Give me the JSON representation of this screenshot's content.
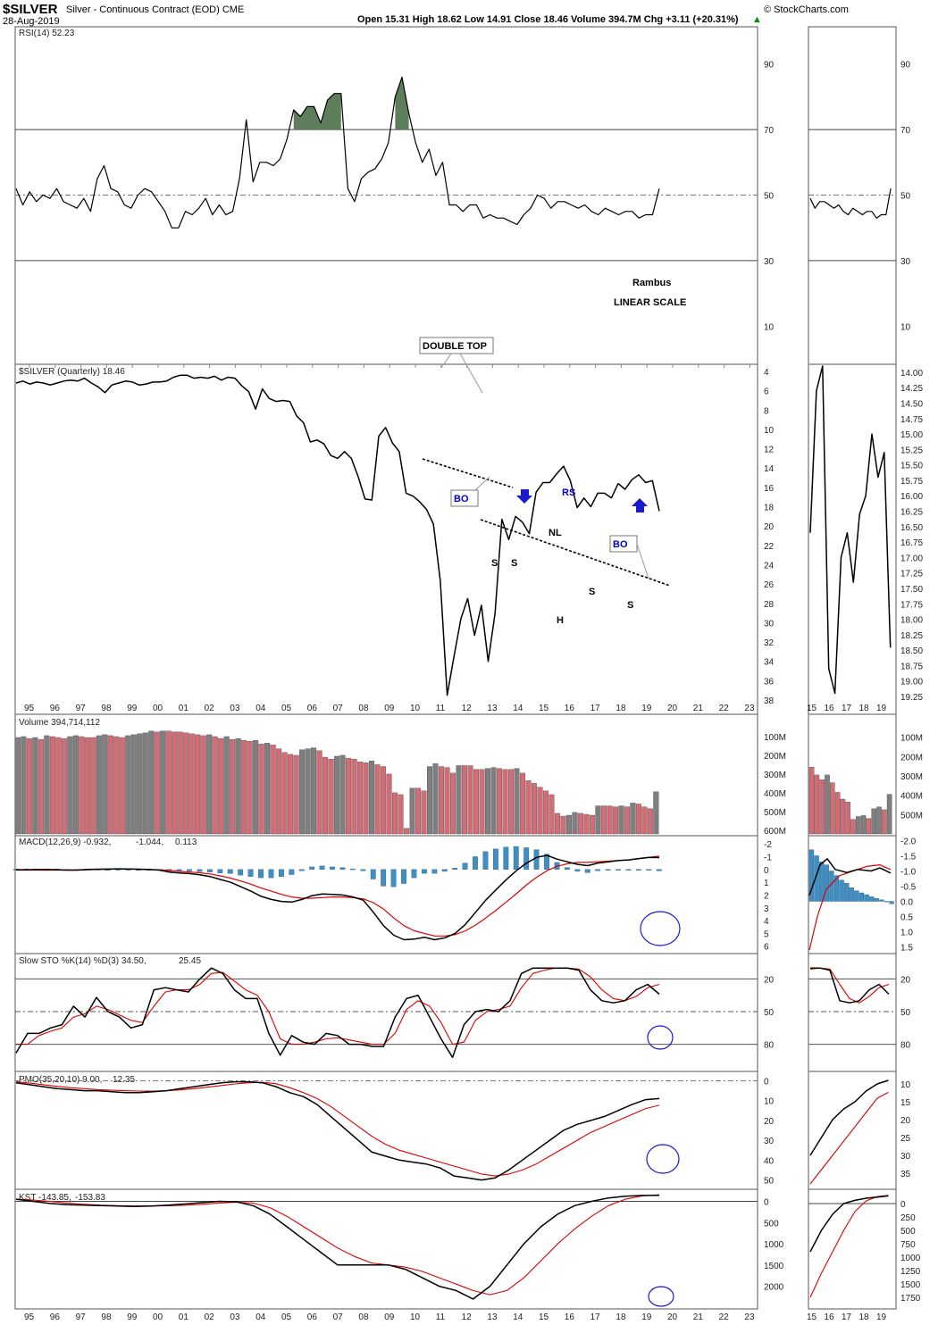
{
  "header": {
    "symbol": "$SILVER",
    "name": "Silver - Continuous Contract (EOD)",
    "exchange": "CME",
    "date": "28-Aug-2019",
    "ohlc": "Open 15.31  High 18.62  Low 14.91  Close 18.46  Volume 394.7M  Chg +3.11 (+20.31%)",
    "ohlc_arrow": "▲",
    "credit": "© StockCharts.com"
  },
  "panels": {
    "rsi": "RSI(14) 52.23",
    "price": "$SILVER (Quarterly) 18.46",
    "volume": "Volume 394,714,112",
    "macd_a": "MACD(12,26,9) -0.932,",
    "macd_b": "-1.044,",
    "macd_c": "0.113",
    "sto_a": "Slow STO %K(14) %D(3) 34.50,",
    "sto_b": "25.45",
    "pmo_a": "PMO(35,20,10) 9.00,",
    "pmo_b": "12.35",
    "kst_a": "KST -143.85,",
    "kst_b": "-153.83"
  },
  "annotations": {
    "rambus": "Rambus",
    "scale": "LINEAR SCALE",
    "double_top": "DOUBLE TOP",
    "bo": "BO",
    "rs": "RS",
    "nl": "NL",
    "s": "S",
    "h": "H"
  },
  "colors": {
    "price": "#000000",
    "signal": "#dd0000",
    "histogram": "#3d8fc4",
    "volume_up": "#d16d77",
    "volume_down": "#7f7f7f",
    "rsi_fill": "#5e7d5a",
    "annotation_blue": "#0000cc"
  },
  "chart_data": {
    "type": "line",
    "x_labels": [
      "95",
      "96",
      "97",
      "98",
      "99",
      "00",
      "01",
      "02",
      "03",
      "04",
      "05",
      "06",
      "07",
      "08",
      "09",
      "10",
      "11",
      "12",
      "13",
      "14",
      "15",
      "16",
      "17",
      "18",
      "19",
      "20",
      "21",
      "22",
      "23"
    ],
    "zoom_x_labels": [
      "15",
      "16",
      "17",
      "18",
      "19"
    ],
    "price": [
      5.2,
      5.0,
      5.3,
      5.1,
      5.2,
      5.4,
      5.2,
      5.0,
      4.9,
      5.0,
      4.7,
      5.2,
      5.6,
      6.2,
      5.4,
      5.2,
      5.0,
      5.1,
      5.4,
      5.3,
      5.1,
      5.1,
      5.0,
      4.6,
      4.4,
      4.4,
      4.7,
      4.6,
      4.7,
      4.5,
      4.9,
      4.6,
      4.7,
      5.5,
      6.1,
      7.9,
      5.8,
      6.8,
      7.1,
      7.0,
      7.1,
      8.6,
      9.3,
      11.3,
      11.1,
      11.5,
      12.7,
      13.0,
      12.3,
      13.0,
      14.9,
      17.2,
      17.3,
      10.7,
      9.8,
      11.4,
      12.3,
      16.6,
      16.9,
      17.5,
      18.3,
      19.8,
      25.7,
      37.5,
      33.5,
      29.6,
      27.5,
      31.3,
      28.2,
      34.0,
      29.0,
      19.3,
      21.4,
      19.0,
      19.6,
      20.8,
      16.5,
      15.5,
      15.5,
      14.6,
      13.8,
      15.3,
      18.1,
      17.1,
      18.0,
      16.6,
      16.6,
      17.1,
      15.6,
      16.2,
      15.2,
      14.7,
      15.5,
      15.3,
      18.46
    ],
    "price_axis": [
      4,
      6,
      8,
      10,
      12,
      14,
      16,
      18,
      20,
      22,
      24,
      26,
      28,
      30,
      32,
      34,
      36,
      38
    ],
    "zoom_price": [
      16.6,
      14.3,
      13.9,
      18.8,
      19.2,
      17.0,
      16.6,
      17.4,
      16.3,
      16.0,
      15.0,
      15.7,
      15.3,
      18.46
    ],
    "zoom_price_axis": [
      14.0,
      14.25,
      14.5,
      14.75,
      15.0,
      15.25,
      15.5,
      15.75,
      16.0,
      16.25,
      16.5,
      16.75,
      17.0,
      17.25,
      17.5,
      17.75,
      18.0,
      18.25,
      18.5,
      18.75,
      19.0,
      19.25
    ],
    "rsi": [
      52,
      47,
      51,
      48,
      50,
      49,
      52,
      48,
      47,
      46,
      49,
      45,
      55,
      59,
      52,
      51,
      47,
      46,
      50,
      52,
      51,
      48,
      45,
      40,
      40,
      45,
      44,
      46,
      49,
      44,
      47,
      44,
      45,
      55,
      73,
      54,
      60,
      60,
      59,
      61,
      67,
      76,
      74,
      77,
      77,
      72,
      79,
      81,
      81,
      52,
      48,
      55,
      57,
      58,
      61,
      66,
      80,
      86,
      75,
      66,
      60,
      64,
      56,
      60,
      47,
      47,
      45,
      47,
      47,
      43,
      44,
      43,
      43,
      42,
      41,
      44,
      46,
      50,
      49,
      46,
      48,
      48,
      47,
      46,
      47,
      45,
      44,
      46,
      45,
      44,
      45,
      45,
      43,
      44,
      44,
      52
    ],
    "rsi_levels": [
      10,
      30,
      50,
      70,
      90
    ],
    "volume_m": [
      105,
      100,
      110,
      105,
      115,
      95,
      100,
      105,
      110,
      100,
      95,
      100,
      105,
      105,
      95,
      90,
      95,
      100,
      105,
      95,
      90,
      85,
      80,
      70,
      75,
      70,
      70,
      75,
      75,
      80,
      85,
      90,
      95,
      90,
      100,
      110,
      100,
      115,
      110,
      120,
      125,
      120,
      140,
      135,
      145,
      165,
      185,
      195,
      200,
      170,
      165,
      160,
      175,
      210,
      220,
      205,
      200,
      215,
      220,
      235,
      240,
      230,
      250,
      260,
      300,
      400,
      410,
      590,
      375,
      375,
      390,
      260,
      245,
      260,
      265,
      295,
      255,
      255,
      255,
      275,
      275,
      270,
      265,
      270,
      275,
      275,
      270,
      295,
      335,
      350,
      370,
      390,
      410,
      510,
      525,
      520,
      505,
      510,
      515,
      520,
      470,
      470,
      470,
      475,
      470,
      475,
      455,
      460,
      475,
      485,
      395
    ],
    "volume_axis": [
      "100M",
      "200M",
      "300M",
      "400M",
      "500M",
      "600M"
    ],
    "zoom_volume_m": [
      255,
      295,
      320,
      295,
      335,
      385,
      420,
      435,
      525,
      510,
      505,
      520,
      470,
      460,
      475,
      395
    ],
    "macd": [
      0.02,
      0.02,
      0.01,
      0.01,
      0.02,
      0.05,
      0.05,
      0.0,
      -0.02,
      -0.03,
      -0.05,
      -0.04,
      -0.02,
      0.0,
      0.05,
      0.2,
      0.28,
      0.32,
      0.42,
      0.55,
      0.78,
      1.0,
      1.35,
      1.7,
      2.1,
      2.35,
      2.5,
      2.55,
      2.35,
      2.05,
      1.92,
      1.95,
      2.0,
      2.15,
      2.4,
      3.35,
      4.4,
      5.15,
      5.5,
      5.45,
      5.3,
      5.5,
      5.35,
      5.0,
      4.3,
      3.35,
      2.4,
      1.6,
      0.8,
      0.1,
      -0.5,
      -0.95,
      -1.1,
      -0.8,
      -0.6,
      -0.4,
      -0.3,
      -0.5,
      -0.6,
      -0.7,
      -0.75,
      -0.85,
      -0.95,
      -0.93
    ],
    "macd_signal": [
      0.05,
      0.05,
      0.05,
      0.05,
      0.05,
      0.05,
      0.05,
      0.02,
      0.0,
      -0.02,
      -0.03,
      -0.03,
      -0.02,
      0.0,
      0.02,
      0.08,
      0.15,
      0.2,
      0.26,
      0.35,
      0.5,
      0.68,
      0.9,
      1.15,
      1.45,
      1.7,
      1.95,
      2.15,
      2.25,
      2.25,
      2.2,
      2.15,
      2.15,
      2.2,
      2.3,
      2.6,
      3.1,
      3.8,
      4.4,
      4.8,
      5.0,
      5.2,
      5.2,
      5.1,
      4.8,
      4.35,
      3.8,
      3.2,
      2.55,
      1.9,
      1.2,
      0.6,
      0.1,
      -0.25,
      -0.45,
      -0.55,
      -0.55,
      -0.6,
      -0.65,
      -0.7,
      -0.75,
      -0.85,
      -0.95,
      -1.04
    ],
    "macd_axis": [
      -2,
      -1,
      0,
      1,
      2,
      3,
      4,
      5,
      6
    ],
    "zoom_macd_axis": [
      -2.0,
      -1.5,
      -1.0,
      -0.5,
      0.0,
      0.5,
      1.0,
      1.5
    ],
    "stoch_k": [
      88,
      70,
      70,
      65,
      62,
      45,
      55,
      37,
      50,
      55,
      65,
      62,
      30,
      28,
      30,
      32,
      20,
      10,
      15,
      30,
      38,
      38,
      70,
      90,
      72,
      78,
      80,
      70,
      72,
      80,
      80,
      82,
      82,
      55,
      38,
      35,
      55,
      75,
      92,
      62,
      50,
      48,
      50,
      40,
      15,
      10,
      10,
      10,
      10,
      12,
      30,
      40,
      42,
      40,
      30,
      25,
      34
    ],
    "stoch_d": [
      80,
      80,
      72,
      68,
      65,
      55,
      52,
      45,
      48,
      53,
      58,
      60,
      45,
      32,
      30,
      30,
      25,
      15,
      14,
      22,
      30,
      35,
      50,
      75,
      80,
      80,
      78,
      75,
      74,
      76,
      78,
      80,
      80,
      70,
      48,
      40,
      45,
      60,
      80,
      78,
      58,
      50,
      48,
      45,
      28,
      15,
      12,
      10,
      10,
      11,
      18,
      30,
      38,
      40,
      36,
      28,
      25
    ],
    "stoch_levels": [
      20,
      50,
      80
    ],
    "pmo": [
      1,
      2,
      3,
      4,
      4.5,
      5,
      5,
      5.5,
      6,
      6,
      5.5,
      5,
      4,
      3,
      2,
      1,
      0.5,
      0.5,
      1,
      3,
      6,
      8,
      12,
      18,
      24,
      30,
      36,
      38,
      40,
      41,
      42,
      44,
      48,
      49,
      50,
      49,
      45,
      40,
      35,
      30,
      25,
      22,
      20,
      18,
      15,
      12,
      9.5,
      9.0
    ],
    "pmo_signal": [
      0.5,
      1.2,
      2,
      2.8,
      3.5,
      4,
      4.5,
      4.8,
      5,
      5.2,
      5.2,
      5,
      4.6,
      4,
      3.2,
      2.4,
      1.6,
      1,
      0.8,
      1.5,
      3.5,
      6,
      9,
      13,
      18,
      23,
      28,
      32,
      35,
      37,
      39,
      41,
      43,
      45,
      47,
      48,
      47,
      45,
      42,
      38,
      34,
      30,
      26,
      23,
      20,
      17,
      14,
      12.35
    ],
    "pmo_axis": [
      0,
      10,
      20,
      30,
      40,
      50
    ],
    "zoom_pmo": [
      30,
      25,
      20,
      17,
      15,
      12,
      10,
      9
    ],
    "zoom_pmo_signal": [
      38,
      34,
      30,
      26,
      22,
      18,
      14,
      12.35
    ],
    "zoom_pmo_axis": [
      10,
      15,
      20,
      25,
      30,
      35
    ],
    "kst": [
      -50,
      0,
      50,
      80,
      90,
      100,
      110,
      120,
      110,
      90,
      60,
      30,
      0,
      10,
      100,
      300,
      600,
      900,
      1200,
      1500,
      1500,
      1500,
      1500,
      1600,
      1800,
      2000,
      2100,
      2300,
      2000,
      1500,
      1000,
      600,
      300,
      100,
      0,
      -80,
      -120,
      -140,
      -143.85
    ],
    "kst_signal": [
      -50,
      -30,
      0,
      40,
      70,
      90,
      100,
      110,
      110,
      105,
      90,
      70,
      40,
      20,
      40,
      150,
      350,
      600,
      850,
      1100,
      1300,
      1450,
      1500,
      1550,
      1650,
      1800,
      1950,
      2100,
      2200,
      2100,
      1800,
      1400,
      1000,
      650,
      350,
      100,
      -50,
      -130,
      -153.83
    ],
    "kst_axis": [
      0,
      500,
      1000,
      1500,
      2000
    ],
    "zoom_kst": [
      900,
      500,
      200,
      0,
      -60,
      -100,
      -120,
      -143.85
    ],
    "zoom_kst_signal": [
      1750,
      1300,
      900,
      500,
      150,
      -50,
      -130,
      -153.83
    ],
    "zoom_kst_axis": [
      0,
      250,
      500,
      750,
      1000,
      1250,
      1500,
      1750
    ]
  }
}
